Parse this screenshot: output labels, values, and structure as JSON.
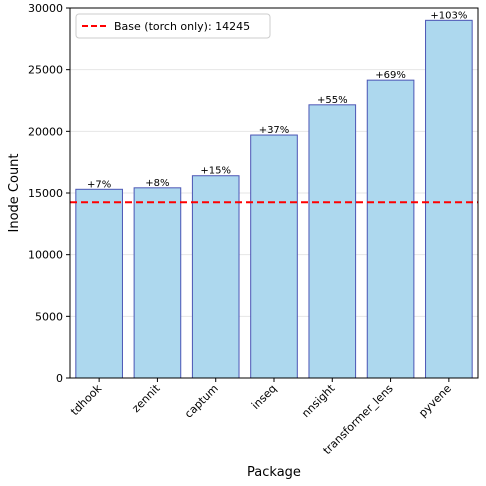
{
  "chart_data": {
    "type": "bar",
    "title": "",
    "xlabel": "Package",
    "ylabel": "Inode Count",
    "ylim": [
      0,
      30000
    ],
    "yticks": [
      0,
      5000,
      10000,
      15000,
      20000,
      25000,
      30000
    ],
    "categories": [
      "tdhook",
      "zennit",
      "captum",
      "inseq",
      "nnsight",
      "transformer_lens",
      "pyvene"
    ],
    "values": [
      15300,
      15420,
      16400,
      19700,
      22150,
      24150,
      29000
    ],
    "bar_labels": [
      "+7%",
      "+8%",
      "+15%",
      "+37%",
      "+55%",
      "+69%",
      "+103%"
    ],
    "baseline": {
      "value": 14245,
      "label": "Base (torch only): 14245",
      "color": "#ff0000"
    },
    "bar_fill": "#add8ee",
    "bar_edge": "#4b55b5",
    "grid": "horizontal",
    "legend_position": "top-left"
  }
}
